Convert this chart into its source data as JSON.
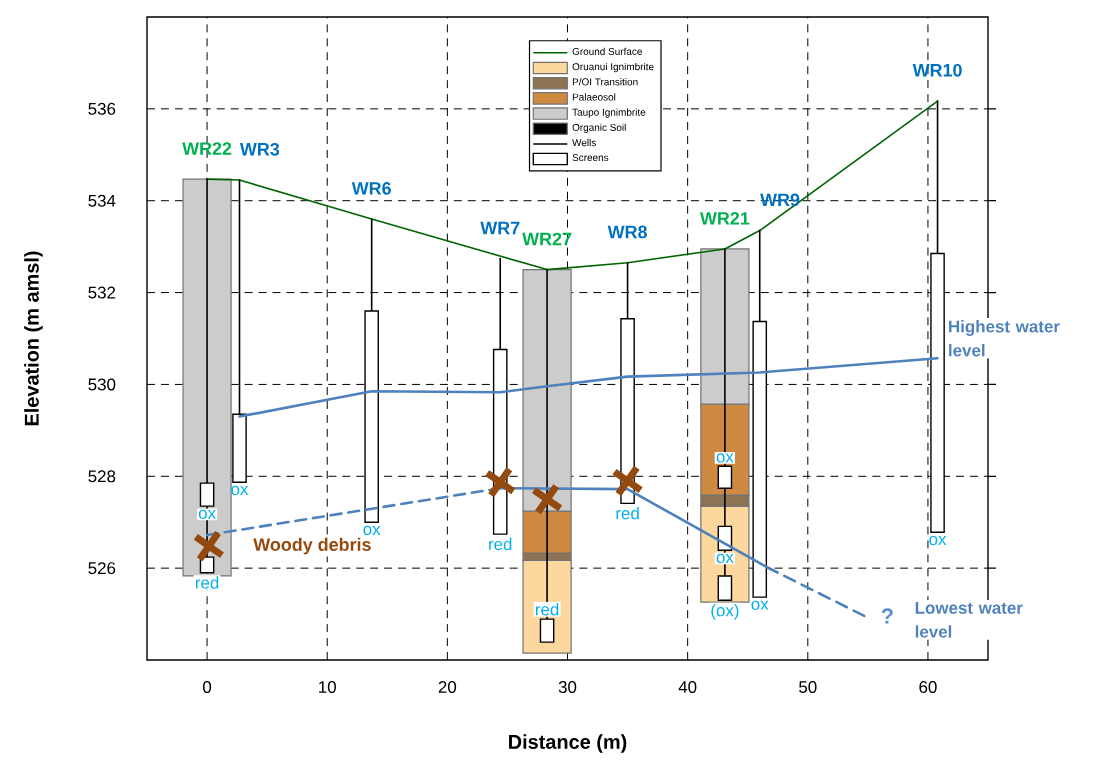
{
  "chart_data": {
    "type": "bar",
    "xlabel": "Distance (m)",
    "ylabel": "Elevation (m amsl)",
    "xlim": [
      -5,
      65
    ],
    "ylim": [
      524,
      538
    ],
    "xticks": [
      0,
      10,
      20,
      30,
      40,
      50,
      60
    ],
    "yticks": [
      526,
      528,
      530,
      532,
      534,
      536
    ],
    "grid": true,
    "legend": "top",
    "series": [
      {
        "name": "Ground Surface",
        "type": "line",
        "color": "#006400",
        "x": [
          0,
          2.7,
          13.7,
          28.3,
          35.0,
          43.1,
          46.0,
          60.8
        ],
        "values": [
          534.47,
          534.45,
          533.6,
          532.5,
          532.65,
          532.95,
          533.35,
          536.17
        ]
      },
      {
        "name": "Oruanui Ignimbrite",
        "color": "#fdd89e",
        "x": [
          28.3,
          43.1
        ],
        "base": [
          524.15,
          525.26
        ],
        "values": [
          2.02,
          2.09
        ]
      },
      {
        "name": "P/OI Transition",
        "color": "#8c7353",
        "x": [
          28.3,
          43.1
        ],
        "base": [
          526.17,
          527.35
        ],
        "values": [
          0.16,
          0.24
        ]
      },
      {
        "name": "Palaeosol",
        "color": "#cf8a42",
        "x": [
          28.3,
          43.1
        ],
        "base": [
          526.33,
          527.59
        ],
        "values": [
          0.91,
          1.98
        ]
      },
      {
        "name": "Taupo Ignimbrite",
        "color": "#cccccc",
        "x": [
          0,
          28.3,
          43.1
        ],
        "base": [
          525.83,
          527.24,
          529.57
        ],
        "values": [
          8.64,
          5.26,
          3.38
        ]
      },
      {
        "name": "Organic Soil",
        "color": "#000000"
      },
      {
        "name": "Wells",
        "type": "line",
        "color": "#000000",
        "x": [
          0,
          0
        ],
        "values": [
          534.47,
          525.9
        ]
      },
      {
        "type": "line",
        "color": "#000000",
        "x": [
          2.7,
          2.7
        ],
        "values": [
          534.45,
          529.35
        ]
      },
      {
        "type": "line",
        "color": "#000000",
        "x": [
          13.7,
          13.7
        ],
        "values": [
          533.6,
          531.6
        ]
      },
      {
        "type": "line",
        "color": "#000000",
        "x": [
          24.4,
          24.4
        ],
        "values": [
          532.74,
          530.76
        ]
      },
      {
        "type": "line",
        "color": "#000000",
        "x": [
          28.3,
          28.3
        ],
        "values": [
          532.5,
          524.89
        ]
      },
      {
        "type": "line",
        "color": "#000000",
        "x": [
          35.0,
          35.0
        ],
        "values": [
          532.65,
          531.43
        ]
      },
      {
        "type": "line",
        "color": "#000000",
        "x": [
          43.1,
          43.1
        ],
        "values": [
          532.95,
          525.3
        ]
      },
      {
        "type": "line",
        "color": "#000000",
        "x": [
          46.0,
          46.0
        ],
        "values": [
          533.35,
          531.37
        ]
      },
      {
        "type": "line",
        "color": "#000000",
        "x": [
          60.8,
          60.8
        ],
        "values": [
          536.17,
          532.85
        ]
      },
      {
        "name": "Screens",
        "type": "bar",
        "color": "#ffffff",
        "x": [
          0,
          2.7,
          13.7,
          24.4,
          28.3,
          35.0,
          43.1,
          46.0,
          60.8
        ],
        "base": [
          527.35,
          527.87,
          527.0,
          526.74,
          524.39,
          527.41,
          527.74,
          525.37,
          526.78
        ],
        "values": [
          0.5,
          1.48,
          4.6,
          4.02,
          0.5,
          4.02,
          0.48,
          6.0,
          6.07
        ],
        "value_labels": [
          "ox",
          "ox",
          "ox",
          "red",
          "red",
          "red",
          "ox",
          "ox",
          "ox"
        ]
      },
      {
        "type": "bar",
        "color": "#ffffff",
        "x": [
          0,
          43.1
        ],
        "base": [
          525.9,
          526.39
        ],
        "values": [
          0.34,
          0.52
        ],
        "value_labels": [
          "red",
          "ox"
        ]
      },
      {
        "type": "bar",
        "color": "#ffffff",
        "x": [
          43.1
        ],
        "base": [
          525.3
        ],
        "values": [
          0.53
        ],
        "value_labels": [
          "(ox)"
        ]
      },
      {
        "name": "Woody debris",
        "type": "scatter",
        "marker": "cross",
        "color": "#94490f",
        "x": [
          0.15,
          24.4,
          28.3,
          35.0
        ],
        "values": [
          526.48,
          527.87,
          527.5,
          527.9
        ]
      },
      {
        "name": "Highest water level",
        "type": "line",
        "line_style": "solid",
        "color": "#4f81bd",
        "x": [
          2.7,
          13.7,
          24.4,
          28.3,
          35.0,
          46.0,
          60.8
        ],
        "values": [
          529.3,
          529.85,
          529.83,
          529.96,
          530.17,
          530.26,
          530.57
        ]
      },
      {
        "type": "line",
        "line_style": "dashed",
        "color": "#4f81bd",
        "x": [
          0,
          24.4
        ],
        "values": [
          526.72,
          527.74
        ]
      },
      {
        "type": "line",
        "line_style": "solid",
        "color": "#4f81bd",
        "x": [
          24.4,
          35.0,
          46.6
        ],
        "values": [
          527.74,
          527.72,
          526.02
        ]
      },
      {
        "name": "Lowest water level",
        "type": "line",
        "line_style": "dashed",
        "color": "#4f81bd",
        "x": [
          46.6,
          54.7
        ],
        "values": [
          526.02,
          524.96
        ]
      }
    ],
    "annotations": [
      {
        "text": "**WR22**",
        "x": 0,
        "y": 534.47
      },
      {
        "text": "**WR3**",
        "x": 2.7,
        "y": 534.45
      },
      {
        "text": "**WR6**",
        "x": 13.7,
        "y": 533.6
      },
      {
        "text": "**WR7**",
        "x": 24.4,
        "y": 532.74
      },
      {
        "text": "**WR27**",
        "x": 28.3,
        "y": 532.5
      },
      {
        "text": "**WR8**",
        "x": 35.0,
        "y": 532.65
      },
      {
        "text": "**WR21**",
        "x": 43.1,
        "y": 532.95
      },
      {
        "text": "**WR9**",
        "x": 46.0,
        "y": 533.35
      },
      {
        "text": "**WR10**",
        "x": 60.8,
        "y": 536.17
      },
      {
        "text": "**?**",
        "x": 54.7,
        "y": 524.96
      }
    ]
  }
}
